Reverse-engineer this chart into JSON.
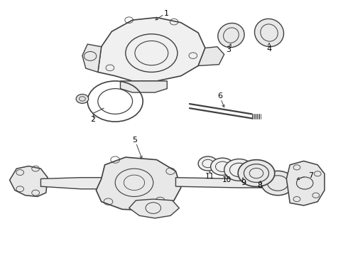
{
  "background_color": "#ffffff",
  "line_color": "#404040",
  "label_color": "#000000",
  "fig_width": 4.9,
  "fig_height": 3.6,
  "dpi": 100
}
